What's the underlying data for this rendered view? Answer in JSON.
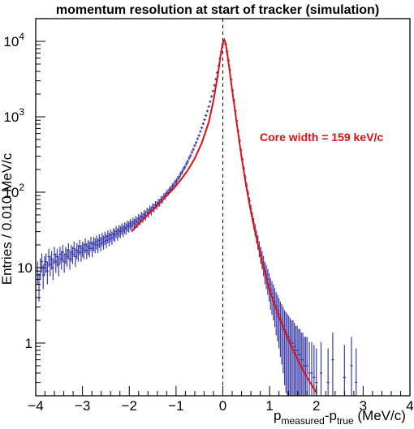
{
  "chart_data": {
    "type": "scatter",
    "title": "momentum resolution at start of tracker (simulation)",
    "xlabel": {
      "main": "p",
      "sub1": "measured",
      "dash": "-p",
      "sub2": "true",
      "unit": " (MeV/c)"
    },
    "ylabel": "Entries / 0.010 MeV/c",
    "xlim": [
      -4,
      4
    ],
    "ylim": [
      0.2,
      20000
    ],
    "yscale": "log",
    "grid": false,
    "x_ticks": [
      {
        "value": -4,
        "label": "−4"
      },
      {
        "value": -3,
        "label": "−3"
      },
      {
        "value": -2,
        "label": "−2"
      },
      {
        "value": -1,
        "label": "−1"
      },
      {
        "value": 0,
        "label": "0"
      },
      {
        "value": 1,
        "label": "1"
      },
      {
        "value": 2,
        "label": "2"
      },
      {
        "value": 3,
        "label": "3"
      },
      {
        "value": 4,
        "label": "4"
      }
    ],
    "y_ticks": [
      {
        "value": 1,
        "label": "1",
        "exp": ""
      },
      {
        "value": 10,
        "label": "10",
        "exp": ""
      },
      {
        "value": 100,
        "label": "10",
        "exp": "2"
      },
      {
        "value": 1000,
        "label": "10",
        "exp": "3"
      },
      {
        "value": 10000,
        "label": "10",
        "exp": "4"
      }
    ],
    "series": [
      {
        "kind": "histogram",
        "color": "#3a3aa8",
        "points": [
          [
            -4.0,
            5
          ],
          [
            -3.96,
            9
          ],
          [
            -3.93,
            6
          ],
          [
            -3.9,
            10
          ],
          [
            -3.87,
            12
          ],
          [
            -3.84,
            8
          ],
          [
            -3.81,
            11
          ],
          [
            -3.78,
            12
          ],
          [
            -3.75,
            9
          ],
          [
            -3.72,
            14
          ],
          [
            -3.69,
            11
          ],
          [
            -3.66,
            13
          ],
          [
            -3.63,
            10
          ],
          [
            -3.6,
            15
          ],
          [
            -3.57,
            12
          ],
          [
            -3.54,
            14
          ],
          [
            -3.51,
            11
          ],
          [
            -3.48,
            15
          ],
          [
            -3.45,
            13
          ],
          [
            -3.42,
            16
          ],
          [
            -3.39,
            12
          ],
          [
            -3.36,
            15
          ],
          [
            -3.33,
            14
          ],
          [
            -3.3,
            17
          ],
          [
            -3.27,
            13
          ],
          [
            -3.24,
            16
          ],
          [
            -3.21,
            15
          ],
          [
            -3.18,
            18
          ],
          [
            -3.15,
            14
          ],
          [
            -3.12,
            17
          ],
          [
            -3.09,
            16
          ],
          [
            -3.06,
            19
          ],
          [
            -3.03,
            16
          ],
          [
            -3.0,
            18
          ],
          [
            -2.97,
            17
          ],
          [
            -2.94,
            20
          ],
          [
            -2.91,
            17
          ],
          [
            -2.88,
            19
          ],
          [
            -2.85,
            18
          ],
          [
            -2.82,
            21
          ],
          [
            -2.79,
            18
          ],
          [
            -2.76,
            21
          ],
          [
            -2.73,
            20
          ],
          [
            -2.7,
            22
          ],
          [
            -2.67,
            20
          ],
          [
            -2.64,
            23
          ],
          [
            -2.61,
            21
          ],
          [
            -2.58,
            24
          ],
          [
            -2.55,
            22
          ],
          [
            -2.52,
            25
          ],
          [
            -2.49,
            23
          ],
          [
            -2.46,
            26
          ],
          [
            -2.43,
            24
          ],
          [
            -2.4,
            27
          ],
          [
            -2.37,
            25
          ],
          [
            -2.34,
            28
          ],
          [
            -2.31,
            27
          ],
          [
            -2.28,
            30
          ],
          [
            -2.25,
            28
          ],
          [
            -2.22,
            31
          ],
          [
            -2.19,
            30
          ],
          [
            -2.16,
            33
          ],
          [
            -2.13,
            31
          ],
          [
            -2.1,
            34
          ],
          [
            -2.07,
            33
          ],
          [
            -2.04,
            36
          ],
          [
            -2.01,
            35
          ],
          [
            -1.98,
            38
          ],
          [
            -1.95,
            36
          ],
          [
            -1.92,
            40
          ],
          [
            -1.89,
            38
          ],
          [
            -1.86,
            42
          ],
          [
            -1.83,
            40
          ],
          [
            -1.8,
            45
          ],
          [
            -1.77,
            43
          ],
          [
            -1.74,
            48
          ],
          [
            -1.71,
            46
          ],
          [
            -1.68,
            51
          ],
          [
            -1.65,
            49
          ],
          [
            -1.62,
            55
          ],
          [
            -1.59,
            53
          ],
          [
            -1.56,
            59
          ],
          [
            -1.53,
            57
          ],
          [
            -1.5,
            63
          ],
          [
            -1.47,
            62
          ],
          [
            -1.44,
            68
          ],
          [
            -1.41,
            67
          ],
          [
            -1.38,
            73
          ],
          [
            -1.35,
            73
          ],
          [
            -1.32,
            80
          ],
          [
            -1.29,
            80
          ],
          [
            -1.26,
            88
          ],
          [
            -1.23,
            89
          ],
          [
            -1.2,
            97
          ],
          [
            -1.17,
            99
          ],
          [
            -1.14,
            108
          ],
          [
            -1.11,
            110
          ],
          [
            -1.08,
            120
          ],
          [
            -1.05,
            124
          ],
          [
            -1.02,
            135
          ],
          [
            -0.99,
            140
          ],
          [
            -0.96,
            152
          ],
          [
            -0.93,
            160
          ],
          [
            -0.9,
            175
          ],
          [
            -0.87,
            185
          ],
          [
            -0.84,
            203
          ],
          [
            -0.81,
            215
          ],
          [
            -0.78,
            238
          ],
          [
            -0.75,
            255
          ],
          [
            -0.72,
            283
          ],
          [
            -0.69,
            305
          ],
          [
            -0.66,
            340
          ],
          [
            -0.63,
            370
          ],
          [
            -0.6,
            415
          ],
          [
            -0.57,
            455
          ],
          [
            -0.54,
            510
          ],
          [
            -0.51,
            565
          ],
          [
            -0.48,
            640
          ],
          [
            -0.45,
            715
          ],
          [
            -0.42,
            810
          ],
          [
            -0.39,
            915
          ],
          [
            -0.36,
            1040
          ],
          [
            -0.33,
            1190
          ],
          [
            -0.3,
            1370
          ],
          [
            -0.27,
            1590
          ],
          [
            -0.24,
            1860
          ],
          [
            -0.21,
            2200
          ],
          [
            -0.18,
            2620
          ],
          [
            -0.15,
            3150
          ],
          [
            -0.12,
            3850
          ],
          [
            -0.09,
            4750
          ],
          [
            -0.06,
            5900
          ],
          [
            -0.03,
            7300
          ],
          [
            0.0,
            9200
          ],
          [
            0.03,
            10300
          ],
          [
            0.06,
            9200
          ],
          [
            0.09,
            7300
          ],
          [
            0.12,
            5600
          ],
          [
            0.15,
            4200
          ],
          [
            0.18,
            3100
          ],
          [
            0.21,
            2250
          ],
          [
            0.24,
            1650
          ],
          [
            0.27,
            1200
          ],
          [
            0.3,
            880
          ],
          [
            0.33,
            650
          ],
          [
            0.36,
            480
          ],
          [
            0.39,
            360
          ],
          [
            0.42,
            270
          ],
          [
            0.45,
            205
          ],
          [
            0.48,
            158
          ],
          [
            0.51,
            122
          ],
          [
            0.54,
            96
          ],
          [
            0.57,
            76
          ],
          [
            0.6,
            60
          ],
          [
            0.63,
            48
          ],
          [
            0.66,
            39
          ],
          [
            0.69,
            32
          ],
          [
            0.72,
            26
          ],
          [
            0.75,
            22
          ],
          [
            0.78,
            18
          ],
          [
            0.81,
            15
          ],
          [
            0.84,
            13
          ],
          [
            0.87,
            11
          ],
          [
            0.9,
            9
          ],
          [
            0.93,
            8
          ],
          [
            0.96,
            7
          ],
          [
            0.99,
            6
          ],
          [
            1.02,
            5
          ],
          [
            1.05,
            4.5
          ],
          [
            1.08,
            4
          ],
          [
            1.11,
            3.5
          ],
          [
            1.14,
            3
          ],
          [
            1.17,
            2.7
          ],
          [
            1.2,
            2.4
          ],
          [
            1.23,
            2.1
          ],
          [
            1.26,
            1.9
          ],
          [
            1.29,
            1.7
          ],
          [
            1.32,
            1.5
          ],
          [
            1.35,
            1.4
          ],
          [
            1.38,
            1.3
          ],
          [
            1.41,
            1.2
          ],
          [
            1.44,
            1.1
          ],
          [
            1.47,
            1
          ],
          [
            1.5,
            1
          ],
          [
            1.53,
            0.9
          ],
          [
            1.56,
            0.8
          ],
          [
            1.59,
            0.8
          ],
          [
            1.62,
            0.7
          ],
          [
            1.65,
            0.7
          ],
          [
            1.68,
            0.6
          ],
          [
            1.71,
            0.6
          ],
          [
            1.74,
            0.5
          ],
          [
            1.77,
            0.5
          ],
          [
            1.8,
            0.5
          ],
          [
            1.85,
            0.4
          ],
          [
            1.9,
            0.4
          ],
          [
            1.95,
            0.35
          ],
          [
            2.0,
            0.3
          ],
          [
            2.1,
            0.4
          ],
          [
            2.25,
            0.3
          ],
          [
            2.35,
            0.6
          ],
          [
            2.6,
            0.35
          ],
          [
            2.75,
            0.5
          ],
          [
            2.85,
            0.3
          ]
        ]
      },
      {
        "kind": "fit",
        "color": "#e01010",
        "points": [
          [
            -1.95,
            30
          ],
          [
            -1.8,
            38
          ],
          [
            -1.65,
            47
          ],
          [
            -1.5,
            58
          ],
          [
            -1.35,
            72
          ],
          [
            -1.2,
            90
          ],
          [
            -1.05,
            112
          ],
          [
            -0.9,
            145
          ],
          [
            -0.75,
            195
          ],
          [
            -0.6,
            280
          ],
          [
            -0.45,
            450
          ],
          [
            -0.3,
            850
          ],
          [
            -0.2,
            1650
          ],
          [
            -0.1,
            3800
          ],
          [
            -0.05,
            6400
          ],
          [
            0.0,
            9500
          ],
          [
            0.03,
            10500
          ],
          [
            0.06,
            9400
          ],
          [
            0.1,
            6500
          ],
          [
            0.15,
            3900
          ],
          [
            0.2,
            2250
          ],
          [
            0.3,
            800
          ],
          [
            0.4,
            290
          ],
          [
            0.5,
            120
          ],
          [
            0.6,
            55
          ],
          [
            0.7,
            28
          ],
          [
            0.8,
            15
          ],
          [
            0.9,
            8.5
          ],
          [
            1.0,
            5
          ],
          [
            1.2,
            2.2
          ],
          [
            1.4,
            1.1
          ],
          [
            1.6,
            0.6
          ],
          [
            1.8,
            0.35
          ],
          [
            2.0,
            0.22
          ]
        ]
      }
    ],
    "vline": {
      "x": 0,
      "style": "dashed"
    },
    "annotation": {
      "text": "Core width = 159 keV/c",
      "color": "#e01010"
    }
  }
}
